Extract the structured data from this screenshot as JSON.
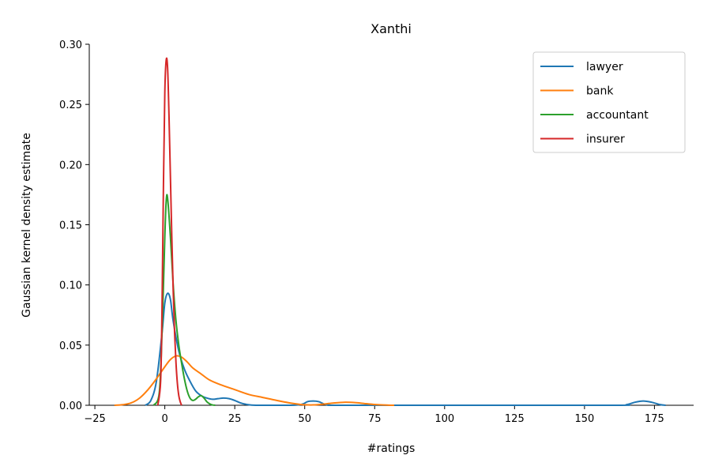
{
  "chart_data": {
    "type": "line",
    "title": "Xanthi",
    "xlabel": "#ratings",
    "ylabel": "Gaussian kernel density estimate",
    "xlim": [
      -27,
      189
    ],
    "ylim": [
      0,
      0.3
    ],
    "x_ticks": [
      -25,
      0,
      25,
      50,
      75,
      100,
      125,
      150,
      175
    ],
    "y_ticks": [
      0.0,
      0.05,
      0.1,
      0.15,
      0.2,
      0.25,
      0.3
    ],
    "x_tick_labels": [
      "−25",
      "0",
      "25",
      "50",
      "75",
      "100",
      "125",
      "150",
      "175"
    ],
    "y_tick_labels": [
      "0.00",
      "0.05",
      "0.10",
      "0.15",
      "0.20",
      "0.25",
      "0.30"
    ],
    "legend_position": "top-right",
    "grid": false,
    "series": [
      {
        "name": "lawyer",
        "color": "#1f77b4",
        "points": [
          [
            -7,
            0
          ],
          [
            -5,
            0.004
          ],
          [
            -3,
            0.02
          ],
          [
            -1,
            0.06
          ],
          [
            0,
            0.085
          ],
          [
            1,
            0.093
          ],
          [
            2,
            0.088
          ],
          [
            3,
            0.07
          ],
          [
            5,
            0.045
          ],
          [
            7,
            0.03
          ],
          [
            9,
            0.02
          ],
          [
            11,
            0.012
          ],
          [
            13,
            0.008
          ],
          [
            15,
            0.006
          ],
          [
            17,
            0.005
          ],
          [
            19,
            0.0055
          ],
          [
            21,
            0.006
          ],
          [
            23,
            0.0055
          ],
          [
            25,
            0.004
          ],
          [
            27,
            0.002
          ],
          [
            29,
            0.0008
          ],
          [
            31,
            0.0002
          ],
          [
            35,
            0
          ],
          [
            45,
            0
          ],
          [
            49,
            0.0008
          ],
          [
            51,
            0.003
          ],
          [
            53,
            0.0035
          ],
          [
            55,
            0.003
          ],
          [
            57,
            0.001
          ],
          [
            59,
            0.0002
          ],
          [
            62,
            0
          ],
          [
            100,
            0
          ],
          [
            160,
            0
          ],
          [
            165,
            0.0005
          ],
          [
            168,
            0.0025
          ],
          [
            171,
            0.0035
          ],
          [
            174,
            0.0025
          ],
          [
            177,
            0.0006
          ],
          [
            179,
            0
          ]
        ]
      },
      {
        "name": "bank",
        "color": "#ff7f0e",
        "points": [
          [
            -18,
            0
          ],
          [
            -15,
            0.0005
          ],
          [
            -12,
            0.002
          ],
          [
            -9,
            0.006
          ],
          [
            -6,
            0.013
          ],
          [
            -3,
            0.022
          ],
          [
            0,
            0.032
          ],
          [
            2,
            0.038
          ],
          [
            4,
            0.041
          ],
          [
            6,
            0.04
          ],
          [
            8,
            0.036
          ],
          [
            10,
            0.031
          ],
          [
            13,
            0.026
          ],
          [
            16,
            0.021
          ],
          [
            20,
            0.017
          ],
          [
            25,
            0.013
          ],
          [
            30,
            0.009
          ],
          [
            35,
            0.0065
          ],
          [
            40,
            0.004
          ],
          [
            45,
            0.0018
          ],
          [
            48,
            0.0008
          ],
          [
            50,
            0.0004
          ],
          [
            53,
            0.0003
          ],
          [
            56,
            0.0008
          ],
          [
            60,
            0.0018
          ],
          [
            64,
            0.0025
          ],
          [
            68,
            0.0022
          ],
          [
            72,
            0.0013
          ],
          [
            76,
            0.0005
          ],
          [
            80,
            0.0001
          ],
          [
            82,
            0
          ]
        ]
      },
      {
        "name": "accountant",
        "color": "#2ca02c",
        "points": [
          [
            -4,
            0
          ],
          [
            -2,
            0.01
          ],
          [
            -1,
            0.06
          ],
          [
            0,
            0.14
          ],
          [
            0.5,
            0.17
          ],
          [
            1,
            0.172
          ],
          [
            2,
            0.14
          ],
          [
            3,
            0.1
          ],
          [
            4,
            0.07
          ],
          [
            5,
            0.05
          ],
          [
            6,
            0.035
          ],
          [
            7,
            0.022
          ],
          [
            8,
            0.012
          ],
          [
            9,
            0.006
          ],
          [
            10,
            0.004
          ],
          [
            11,
            0.005
          ],
          [
            12,
            0.007
          ],
          [
            13,
            0.008
          ],
          [
            14,
            0.006
          ],
          [
            15,
            0.003
          ],
          [
            16,
            0.0012
          ],
          [
            17,
            0.0003
          ],
          [
            18,
            0
          ]
        ]
      },
      {
        "name": "insurer",
        "color": "#d62728",
        "points": [
          [
            -2.5,
            0
          ],
          [
            -1.5,
            0.02
          ],
          [
            -1,
            0.08
          ],
          [
            -0.5,
            0.18
          ],
          [
            0,
            0.26
          ],
          [
            0.5,
            0.287
          ],
          [
            1,
            0.28
          ],
          [
            1.5,
            0.24
          ],
          [
            2,
            0.19
          ],
          [
            2.5,
            0.14
          ],
          [
            3,
            0.095
          ],
          [
            3.5,
            0.06
          ],
          [
            4,
            0.035
          ],
          [
            4.5,
            0.018
          ],
          [
            5,
            0.008
          ],
          [
            5.5,
            0.003
          ],
          [
            6,
            0
          ]
        ]
      }
    ]
  }
}
